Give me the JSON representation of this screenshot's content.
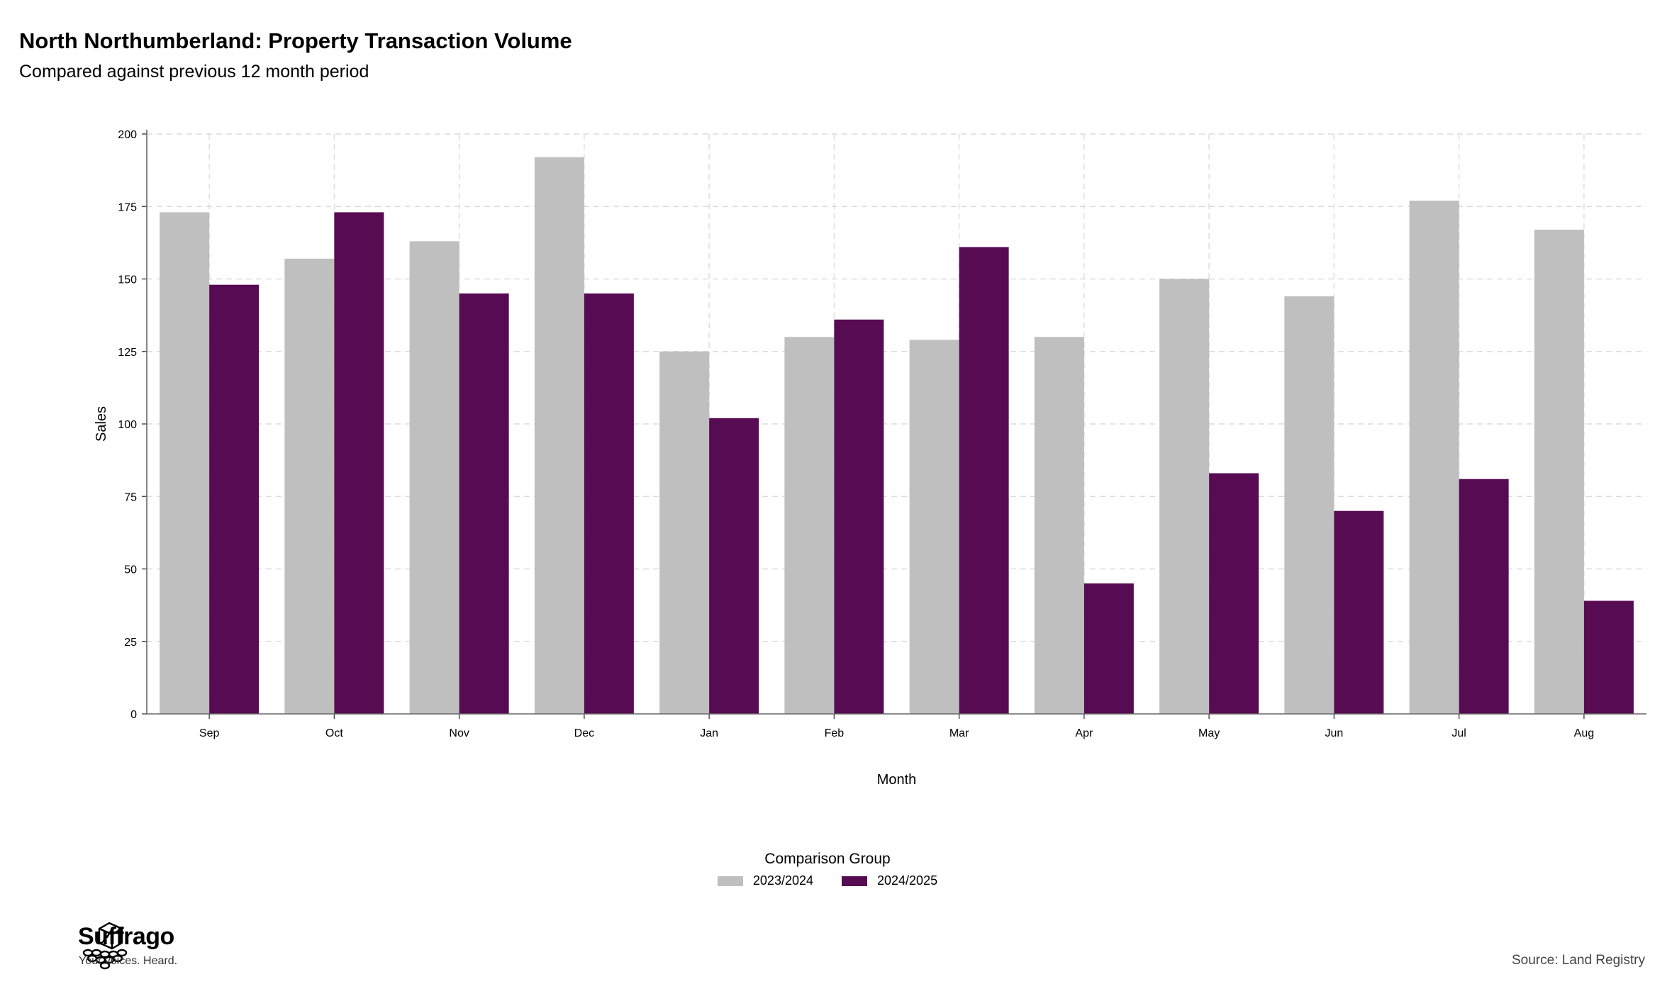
{
  "header": {
    "title": "North Northumberland: Property Transaction Volume",
    "subtitle": "Compared against previous 12 month period"
  },
  "chart_data": {
    "type": "bar",
    "categories": [
      "Sep",
      "Oct",
      "Nov",
      "Dec",
      "Jan",
      "Feb",
      "Mar",
      "Apr",
      "May",
      "Jun",
      "Jul",
      "Aug"
    ],
    "series": [
      {
        "name": "2023/2024",
        "color": "#bfbfbf",
        "values": [
          173,
          157,
          163,
          192,
          125,
          130,
          129,
          130,
          150,
          144,
          177,
          167
        ]
      },
      {
        "name": "2024/2025",
        "color": "#570b52",
        "values": [
          148,
          173,
          145,
          145,
          102,
          136,
          161,
          45,
          83,
          70,
          81,
          39
        ]
      }
    ],
    "xlabel": "Month",
    "ylabel": "Sales",
    "ylim": [
      0,
      200
    ],
    "yticks": [
      0,
      25,
      50,
      75,
      100,
      125,
      150,
      175,
      200
    ],
    "grid": true,
    "legend": {
      "title": "Comparison Group",
      "position": "bottom"
    }
  },
  "brand": {
    "name": "Suffrago",
    "tagline": "Your voices. Heard.",
    "logo_icon": "ballot-box-icon"
  },
  "footer": {
    "source": "Source: Land Registry"
  }
}
